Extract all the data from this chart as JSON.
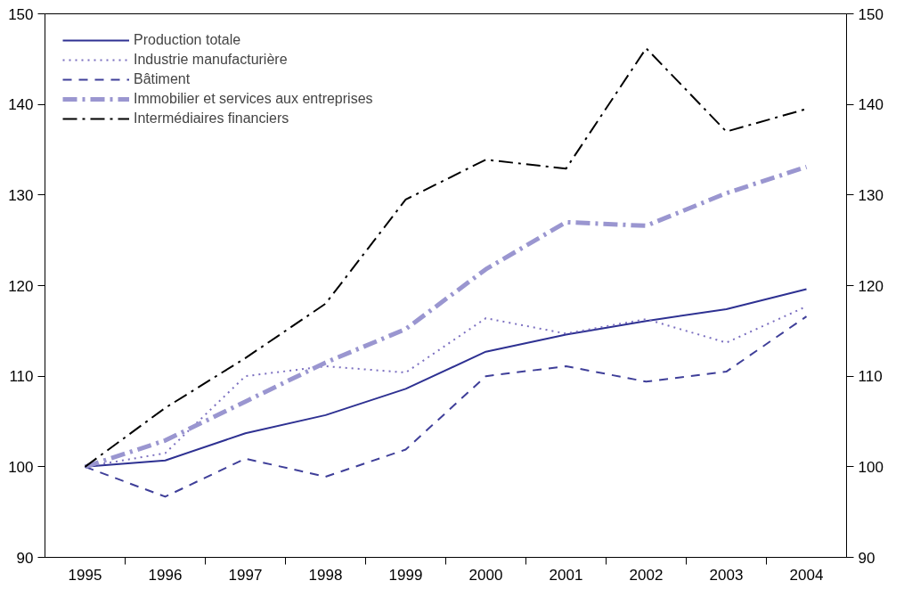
{
  "chart_data": {
    "type": "line",
    "categories": [
      "1995",
      "1996",
      "1997",
      "1998",
      "1999",
      "2000",
      "2001",
      "2002",
      "2003",
      "2004"
    ],
    "series": [
      {
        "name": "Production totale",
        "color": "#2e3192",
        "line_style": "solid",
        "values": [
          100,
          100.7,
          103.7,
          105.7,
          108.6,
          112.7,
          114.6,
          116.1,
          117.4,
          119.6
        ]
      },
      {
        "name": "Industrie manufacturière",
        "color": "#7b6fc0",
        "line_style": "dotted",
        "values": [
          100,
          101.5,
          110,
          111.1,
          110.4,
          116.4,
          114.7,
          116.3,
          113.7,
          117.7
        ]
      },
      {
        "name": "Bâtiment",
        "color": "#3f3f99",
        "line_style": "dashed",
        "values": [
          100,
          96.7,
          100.9,
          98.9,
          101.9,
          110,
          111.1,
          109.4,
          110.5,
          116.6
        ]
      },
      {
        "name": "Immobilier et services aux entreprises",
        "color": "#9a96d0",
        "line_style": "dashdot",
        "values": [
          100,
          102.9,
          107.2,
          111.5,
          115.2,
          121.8,
          127,
          126.6,
          130.2,
          133.1
        ]
      },
      {
        "name": "Intermédiaires financiers",
        "color": "#000000",
        "line_style": "dashdot",
        "values": [
          100,
          106.5,
          112,
          118,
          129.5,
          133.9,
          132.9,
          146.2,
          137,
          139.5
        ]
      }
    ],
    "ylim": [
      90,
      150
    ],
    "yticks": [
      90,
      100,
      110,
      120,
      130,
      140,
      150
    ],
    "y2lim": [
      90,
      150
    ],
    "y2ticks": [
      90,
      100,
      110,
      120,
      130,
      140,
      150
    ],
    "legend": "top left",
    "grid": false
  }
}
